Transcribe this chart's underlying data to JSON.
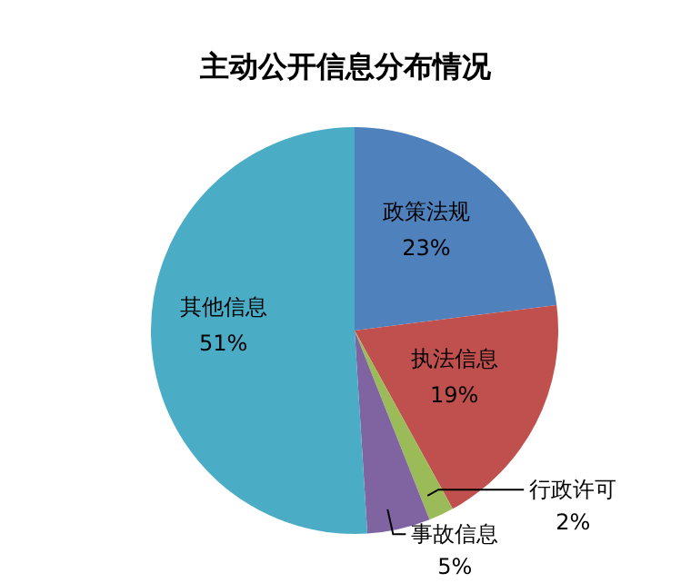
{
  "chart_data": {
    "type": "pie",
    "title": "主动公开信息分布情况",
    "categories": [
      "政策法规",
      "执法信息",
      "行政许可",
      "事故信息",
      "其他信息"
    ],
    "values": [
      23,
      19,
      2,
      5,
      51
    ],
    "colors": [
      "#4f81bd",
      "#c0504d",
      "#9bbb59",
      "#8064a2",
      "#4bacc6"
    ],
    "value_labels": [
      "23%",
      "19%",
      "2%",
      "5%",
      "51%"
    ],
    "legend": false
  }
}
